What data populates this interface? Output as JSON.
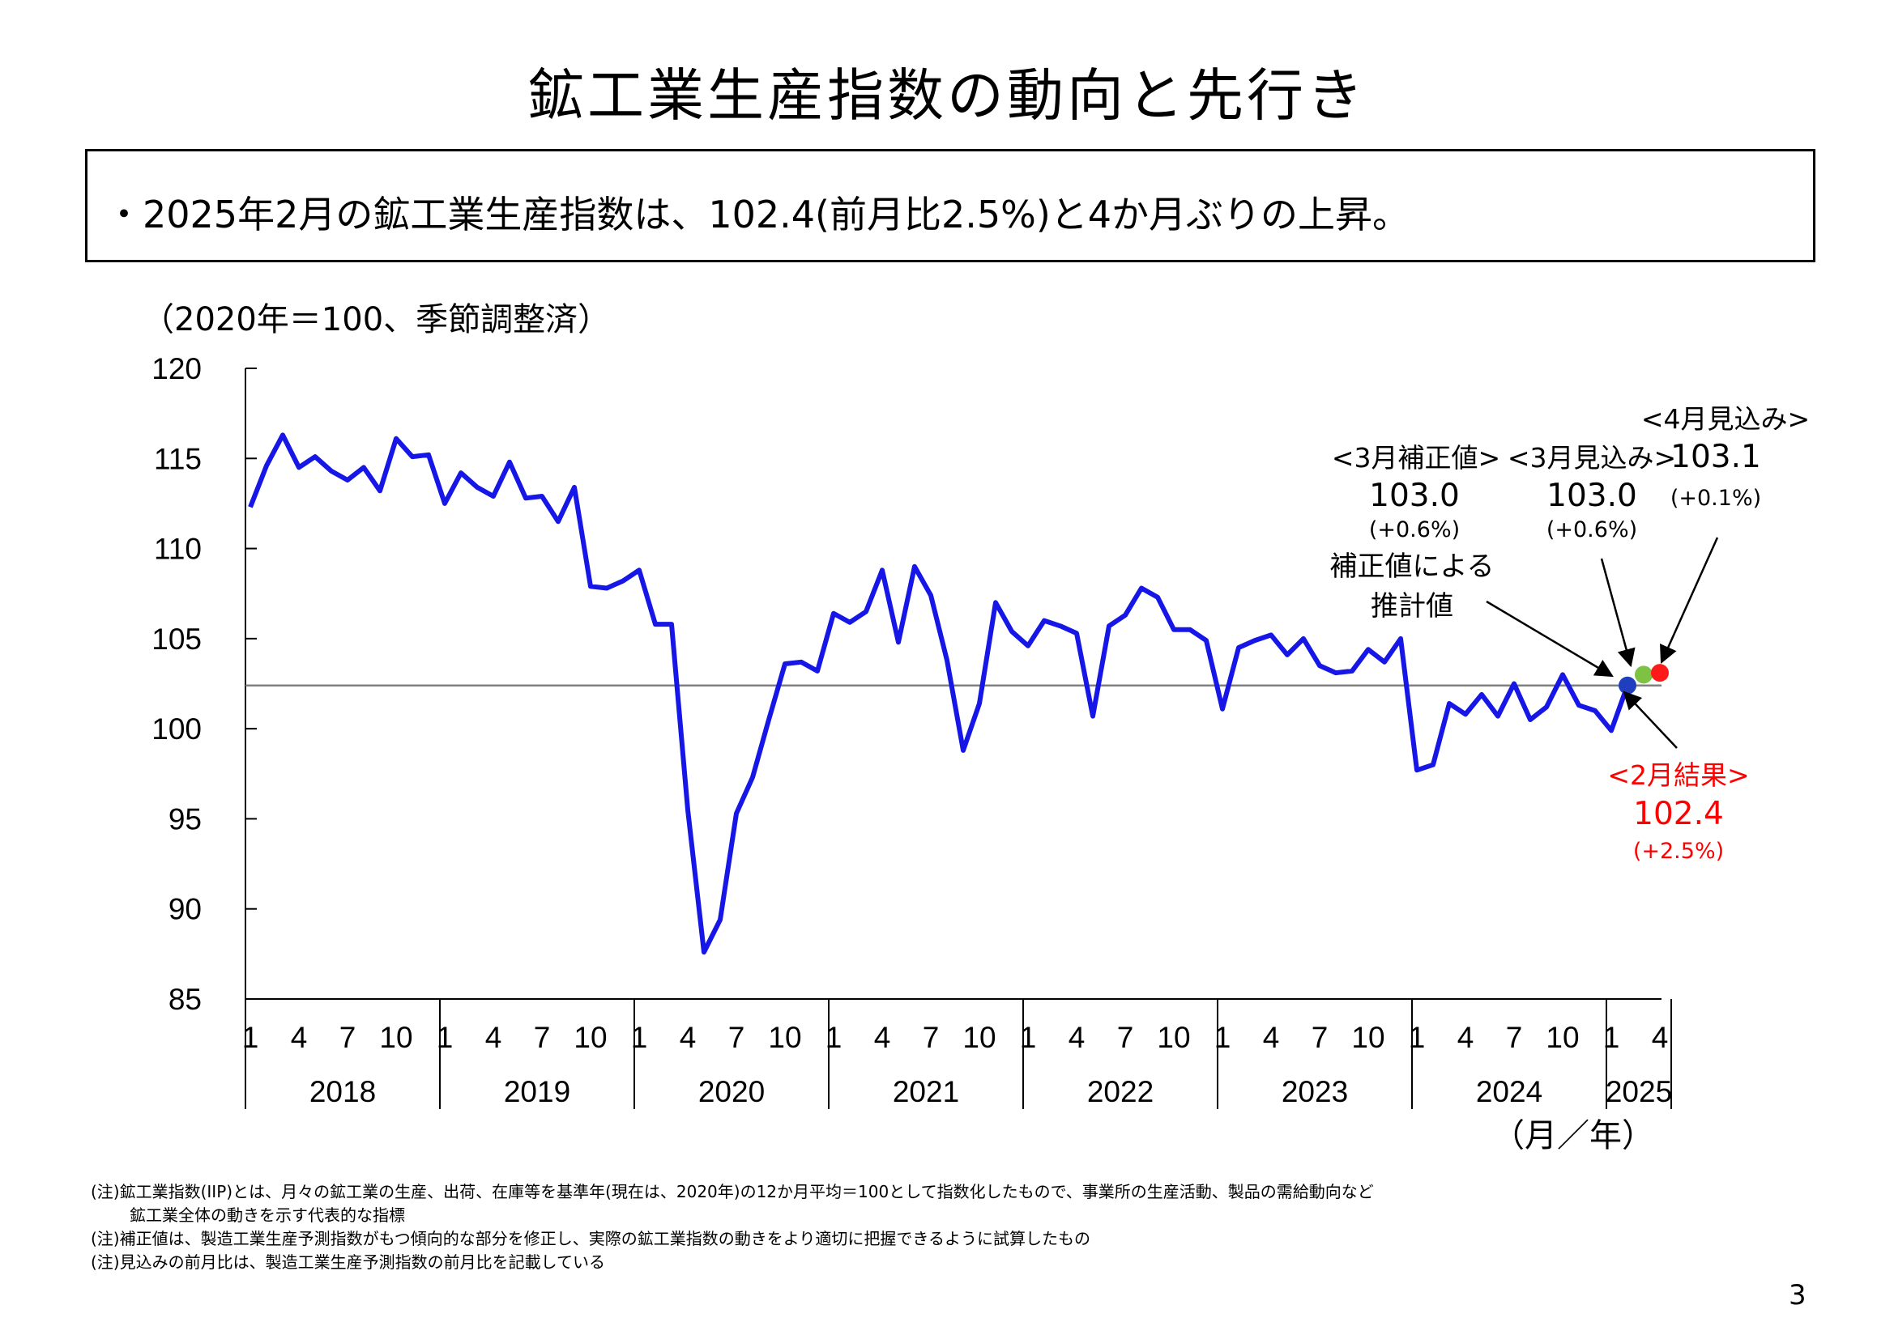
{
  "page": {
    "title": "鉱工業生産指数の動向と先行き",
    "summary": "・2025年2月の鉱工業生産指数は、102.4(前月比2.5%)と4か月ぶりの上昇。",
    "page_number": "3"
  },
  "notes": [
    "(注)鉱工業指数(IIP)とは、月々の鉱工業の生産、出荷、在庫等を基準年(現在は、2020年)の12か月平均＝100として指数化したもので、事業所の生産活動、製品の需給動向など",
    "鉱工業全体の動きを示す代表的な指標",
    "(注)補正値は、製造工業生産予測指数がもつ傾向的な部分を修正し、実際の鉱工業指数の動きをより適切に把握できるように試算したもの",
    "(注)見込みの前月比は、製造工業生産予測指数の前月比を記載している"
  ],
  "colors": {
    "line": "#1616e6",
    "actual_point": "#1f3fbf",
    "corrected_point": "#7dc242",
    "forecast_point": "#ff1a1a",
    "result_text": "#ff0000",
    "reference_line": "#808080"
  },
  "chart_data": {
    "type": "line",
    "unit_label": "（2020年＝100、季節調整済）",
    "xlabel": "（月／年）",
    "ylim": [
      85,
      120
    ],
    "y_ticks": [
      "120",
      "115",
      "110",
      "105",
      "100",
      "95",
      "90",
      "85"
    ],
    "x_month_ticks": [
      "1",
      "4",
      "7",
      "10"
    ],
    "x_month_ticks_2025": [
      "1",
      "4"
    ],
    "years": [
      "2018",
      "2019",
      "2020",
      "2021",
      "2022",
      "2023",
      "2024",
      "2025"
    ],
    "series": [
      {
        "start": "2018-01",
        "values": [
          112.3,
          114.6,
          116.3,
          114.5,
          115.1,
          114.3,
          113.8,
          114.5,
          113.2,
          116.1,
          115.1,
          115.2,
          112.5,
          114.2,
          113.4,
          112.9,
          114.8,
          112.8,
          112.9,
          111.5,
          113.4,
          107.9,
          107.8,
          108.2,
          108.8,
          105.8,
          105.8,
          95.5,
          87.6,
          89.4,
          95.3,
          97.3,
          100.5,
          103.6,
          103.7,
          103.2,
          106.4,
          105.9,
          106.5,
          108.8,
          104.8,
          109.0,
          107.4,
          103.8,
          98.8,
          101.4,
          107.0,
          105.4,
          104.6,
          106.0,
          105.7,
          105.3,
          100.7,
          105.7,
          106.3,
          107.8,
          107.3,
          105.5,
          105.5,
          104.9,
          101.1,
          104.5,
          104.9,
          105.2,
          104.1,
          105.0,
          103.5,
          103.1,
          103.2,
          104.4,
          103.7,
          105.0,
          97.7,
          98.0,
          101.4,
          100.8,
          101.9,
          100.7,
          102.5,
          100.5,
          101.2,
          103.0,
          101.3,
          101.0,
          99.9,
          102.4
        ]
      }
    ],
    "reference_value": 102.4,
    "points": [
      {
        "month": "2025-02",
        "value": 102.4,
        "kind": "actual"
      },
      {
        "month": "2025-03",
        "value": 103.0,
        "kind": "corrected"
      },
      {
        "month": "2025-04",
        "value": 103.1,
        "kind": "forecast"
      }
    ],
    "annotations": {
      "corrected": {
        "label": "<3月補正値>",
        "value": "103.0",
        "change": "(+0.6%)"
      },
      "march_forecast": {
        "label": "<3月見込み>",
        "value": "103.0",
        "change": "(+0.6%)"
      },
      "april_forecast": {
        "label": "<4月見込み>",
        "value": "103.1",
        "change": "(+0.1%)"
      },
      "estimate_note_line1": "補正値による",
      "estimate_note_line2": "推計値",
      "feb_result": {
        "label": "<2月結果>",
        "value": "102.4",
        "change": "(+2.5%)"
      }
    }
  }
}
